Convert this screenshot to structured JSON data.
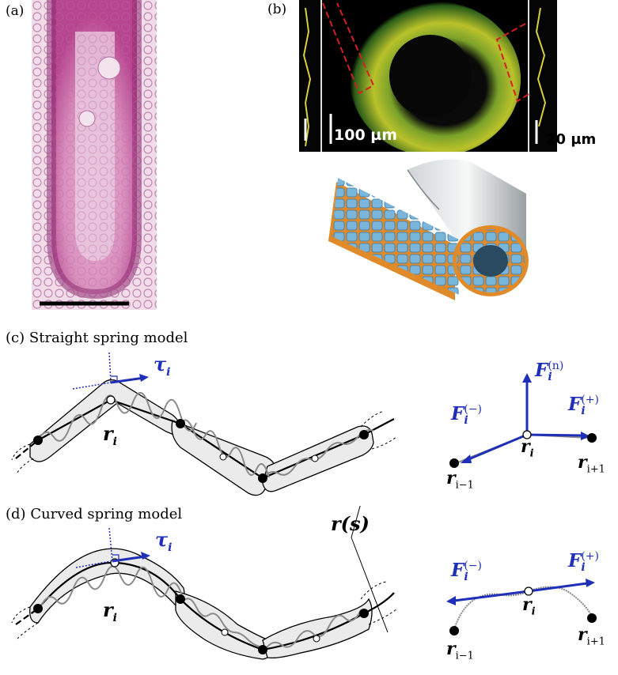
{
  "panels": {
    "a": {
      "label": "(a)"
    },
    "b": {
      "label": "(b)",
      "scale_left": "100 µm",
      "scale_right": "20 µm"
    },
    "c": {
      "label": "(c)",
      "title": "Straight spring model",
      "tangent": "τ",
      "tangent_sub": "i",
      "r_main": "r",
      "r_main_sub": "i",
      "force_n": "F",
      "force_n_sub": "i",
      "force_n_sup": "(n)",
      "force_minus": "F",
      "force_minus_sub": "i",
      "force_minus_sup": "(−)",
      "force_plus": "F",
      "force_plus_sub": "i",
      "force_plus_sup": "(+)",
      "r_center": "r",
      "r_center_sub": "i",
      "r_prev": "r",
      "r_prev_sub": "i−1",
      "r_next": "r",
      "r_next_sub": "i+1"
    },
    "d": {
      "label": "(d)",
      "title": "Curved spring model",
      "tangent": "τ",
      "tangent_sub": "i",
      "r_main": "r",
      "r_main_sub": "i",
      "force_minus": "F",
      "force_minus_sub": "i",
      "force_minus_sup": "(−)",
      "force_plus": "F",
      "force_plus_sub": "i",
      "force_plus_sup": "(+)",
      "r_center": "r",
      "r_center_sub": "i",
      "r_prev": "r",
      "r_prev_sub": "i−1",
      "r_next": "r",
      "r_next_sub": "i+1"
    },
    "curve_label": "r(s)"
  },
  "colors": {
    "force_blue": "#1f2fb8",
    "spring_grey": "#8a8a8a",
    "sheet_blue": "#7ab6dc",
    "sheet_orange": "#e08a2a"
  }
}
